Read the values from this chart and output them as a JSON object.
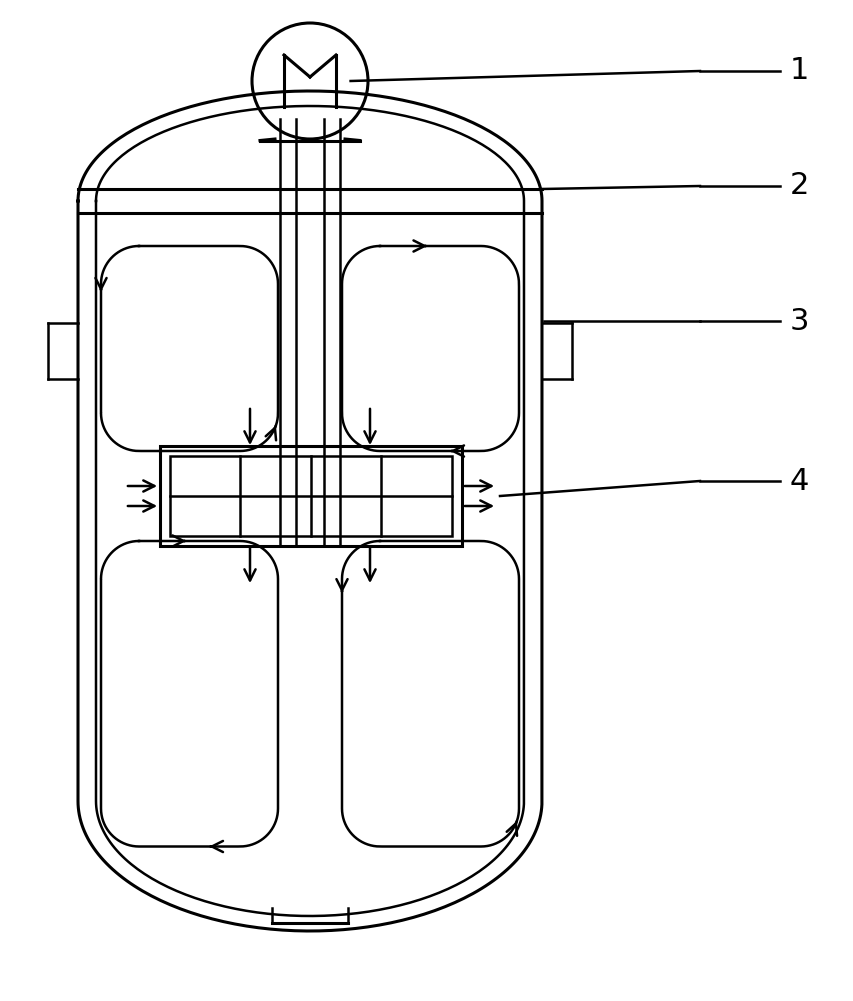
{
  "bg_color": "#ffffff",
  "line_color": "#000000",
  "lw": 1.8,
  "lw2": 2.2,
  "fig_width": 8.54,
  "fig_height": 10.01
}
